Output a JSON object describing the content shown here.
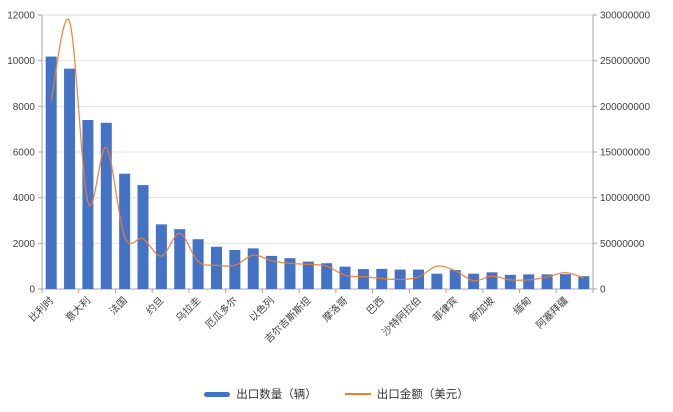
{
  "chart_data": {
    "type": "bar",
    "subtype": "dual-axis bar+line combo",
    "title": "",
    "xlabel": "",
    "ylabel_left": "",
    "ylabel_right": "",
    "grid": true,
    "legend_position": "bottom-center",
    "x_labels_rotation": -45,
    "categories": [
      "比利时",
      "",
      "意大利",
      "",
      "法国",
      "",
      "约旦",
      "",
      "乌拉圭",
      "",
      "厄瓜多尔",
      "",
      "以色列",
      "",
      "吉尔吉斯斯坦",
      "",
      "摩洛哥",
      "",
      "巴西",
      "",
      "沙特阿拉伯",
      "",
      "菲律宾",
      "",
      "新加坡",
      "",
      "缅甸",
      "",
      "阿塞拜疆",
      ""
    ],
    "series": [
      {
        "name": "出口数量（辆）",
        "type": "bar",
        "axis": "left",
        "color": "#4472C4",
        "values": [
          10180,
          9650,
          7400,
          7280,
          5050,
          4550,
          2830,
          2620,
          2180,
          1850,
          1710,
          1780,
          1450,
          1350,
          1200,
          1130,
          980,
          870,
          880,
          850,
          850,
          670,
          830,
          670,
          730,
          620,
          640,
          640,
          650,
          560
        ]
      },
      {
        "name": "出口金额（美元）",
        "type": "line",
        "axis": "right",
        "color": "#ED7D31",
        "smooth": true,
        "values": [
          206000000,
          293000000,
          95000000,
          155000000,
          57000000,
          55000000,
          36000000,
          61000000,
          30000000,
          26000000,
          26000000,
          37000000,
          31000000,
          28000000,
          27000000,
          25000000,
          15000000,
          13500000,
          11500000,
          10500000,
          13000000,
          25000000,
          20000000,
          9000000,
          14000000,
          10000000,
          10000000,
          13000000,
          18000000,
          12000000
        ]
      }
    ],
    "left_axis": {
      "min": 0,
      "max": 12000,
      "step": 2000,
      "ticks": [
        0,
        2000,
        4000,
        6000,
        8000,
        10000,
        12000
      ]
    },
    "right_axis": {
      "min": 0,
      "max": 300000000,
      "step": 50000000,
      "ticks": [
        0,
        50000000,
        100000000,
        150000000,
        200000000,
        250000000,
        300000000
      ]
    }
  },
  "colors": {
    "bar": "#4472C4",
    "line": "#ED7D31",
    "axis_line": "#A6A6A6",
    "grid_line": "#E2E2E2",
    "axis_text": "#404040",
    "background": "#FFFFFF"
  }
}
